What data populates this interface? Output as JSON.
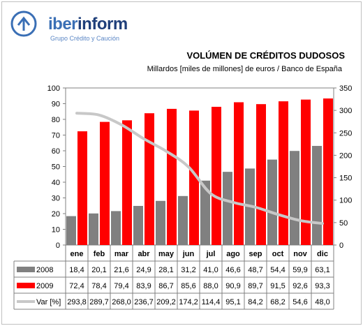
{
  "brand": {
    "part1": "iber",
    "part2": "inform",
    "tagline": "Grupo Crédito y Caución"
  },
  "colors": {
    "s2008": "#808080",
    "s2009": "#ff0000",
    "var": "#c8c8c8",
    "brand": "#3a6fb5"
  },
  "chart_data": {
    "type": "bar",
    "title": "VOLÚMEN DE CRÉDITOS DUDOSOS",
    "subtitle": "Millardos [miles de millones] de euros / Banco de España",
    "categories": [
      "ene",
      "feb",
      "mar",
      "abr",
      "may",
      "jun",
      "jul",
      "ago",
      "sep",
      "oct",
      "nov",
      "dic"
    ],
    "series": [
      {
        "name": "2008",
        "kind": "bar",
        "axis": "left",
        "color": "#808080",
        "values": [
          18.4,
          20.1,
          21.6,
          24.9,
          28.1,
          31.2,
          41.0,
          46.6,
          48.7,
          54.4,
          59.9,
          63.1
        ],
        "labels": [
          "18,4",
          "20,1",
          "21,6",
          "24,9",
          "28,1",
          "31,2",
          "41,0",
          "46,6",
          "48,7",
          "54,4",
          "59,9",
          "63,1"
        ]
      },
      {
        "name": "2009",
        "kind": "bar",
        "axis": "left",
        "color": "#ff0000",
        "values": [
          72.4,
          78.4,
          79.4,
          83.9,
          86.7,
          85.6,
          88.0,
          90.9,
          89.7,
          91.5,
          92.6,
          93.3
        ],
        "labels": [
          "72,4",
          "78,4",
          "79,4",
          "83,9",
          "86,7",
          "85,6",
          "88,0",
          "90,9",
          "89,7",
          "91,5",
          "92,6",
          "93,3"
        ]
      },
      {
        "name": "Var [%]",
        "kind": "line",
        "axis": "right",
        "color": "#c8c8c8",
        "values": [
          293.8,
          289.7,
          268.0,
          236.7,
          209.2,
          174.2,
          114.4,
          95.1,
          84.2,
          68.2,
          54.6,
          48.0
        ],
        "labels": [
          "293,8",
          "289,7",
          "268,0",
          "236,7",
          "209,2",
          "174,2",
          "114,4",
          "95,1",
          "84,2",
          "68,2",
          "54,6",
          "48,0"
        ]
      }
    ],
    "ylim": [
      0,
      100
    ],
    "ylim_right": [
      0,
      350
    ],
    "yticks": [
      "0",
      "10",
      "20",
      "30",
      "40",
      "50",
      "60",
      "70",
      "80",
      "90",
      "100"
    ],
    "yticks_right": [
      "0",
      "50",
      "100",
      "150",
      "200",
      "250",
      "300",
      "350"
    ],
    "grid": false,
    "legend": "data-table"
  }
}
